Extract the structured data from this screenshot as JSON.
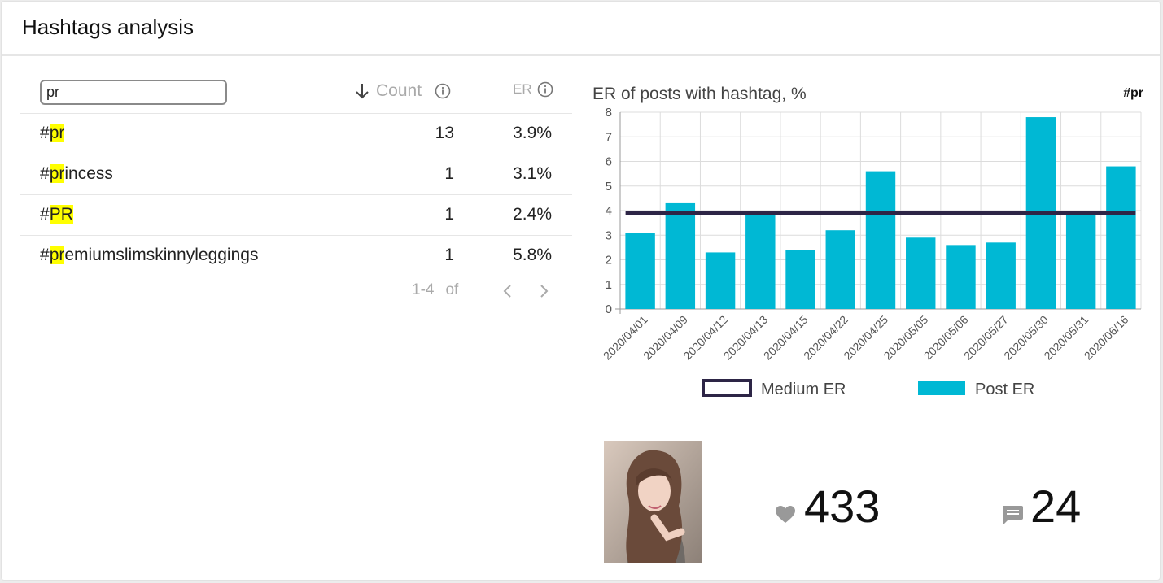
{
  "header": {
    "title": "Hashtags analysis"
  },
  "search": {
    "value": "pr"
  },
  "table": {
    "columns": {
      "count": "Count",
      "er": "ER"
    },
    "rows": [
      {
        "prefix": "#",
        "match": "pr",
        "rest": "",
        "count": "13",
        "er": "3.9%"
      },
      {
        "prefix": "#",
        "match": "pr",
        "rest": "incess",
        "count": "1",
        "er": "3.1%"
      },
      {
        "prefix": "#",
        "match": "PR",
        "rest": "",
        "count": "1",
        "er": "2.4%"
      },
      {
        "prefix": "#",
        "match": "pr",
        "rest": "emiumslimskinnyleggings",
        "count": "1",
        "er": "5.8%"
      }
    ],
    "pager": {
      "range": "1-4",
      "of": "of"
    }
  },
  "chart_header": {
    "title": "ER of posts with hashtag, %",
    "tag": "#pr"
  },
  "chart_data": {
    "type": "bar",
    "title": "ER of posts with hashtag, %",
    "categories": [
      "2020/04/01",
      "2020/04/09",
      "2020/04/12",
      "2020/04/13",
      "2020/04/15",
      "2020/04/22",
      "2020/04/25",
      "2020/05/05",
      "2020/05/06",
      "2020/05/27",
      "2020/05/30",
      "2020/05/31",
      "2020/06/16"
    ],
    "series": [
      {
        "name": "Post ER",
        "type": "bar",
        "values": [
          3.1,
          4.3,
          2.3,
          4.0,
          2.4,
          3.2,
          5.6,
          2.9,
          2.6,
          2.7,
          7.8,
          4.0,
          5.8
        ]
      },
      {
        "name": "Medium ER",
        "type": "line",
        "values": [
          3.9,
          3.9,
          3.9,
          3.9,
          3.9,
          3.9,
          3.9,
          3.9,
          3.9,
          3.9,
          3.9,
          3.9,
          3.9
        ]
      }
    ],
    "ylim": [
      0,
      8
    ],
    "yticks": [
      0,
      1,
      2,
      3,
      4,
      5,
      6,
      7,
      8
    ],
    "grid": true,
    "legend": "bottom",
    "colors": {
      "bar": "#00b8d4",
      "line": "#2d2546"
    }
  },
  "post": {
    "likes": "433",
    "comments": "24"
  }
}
